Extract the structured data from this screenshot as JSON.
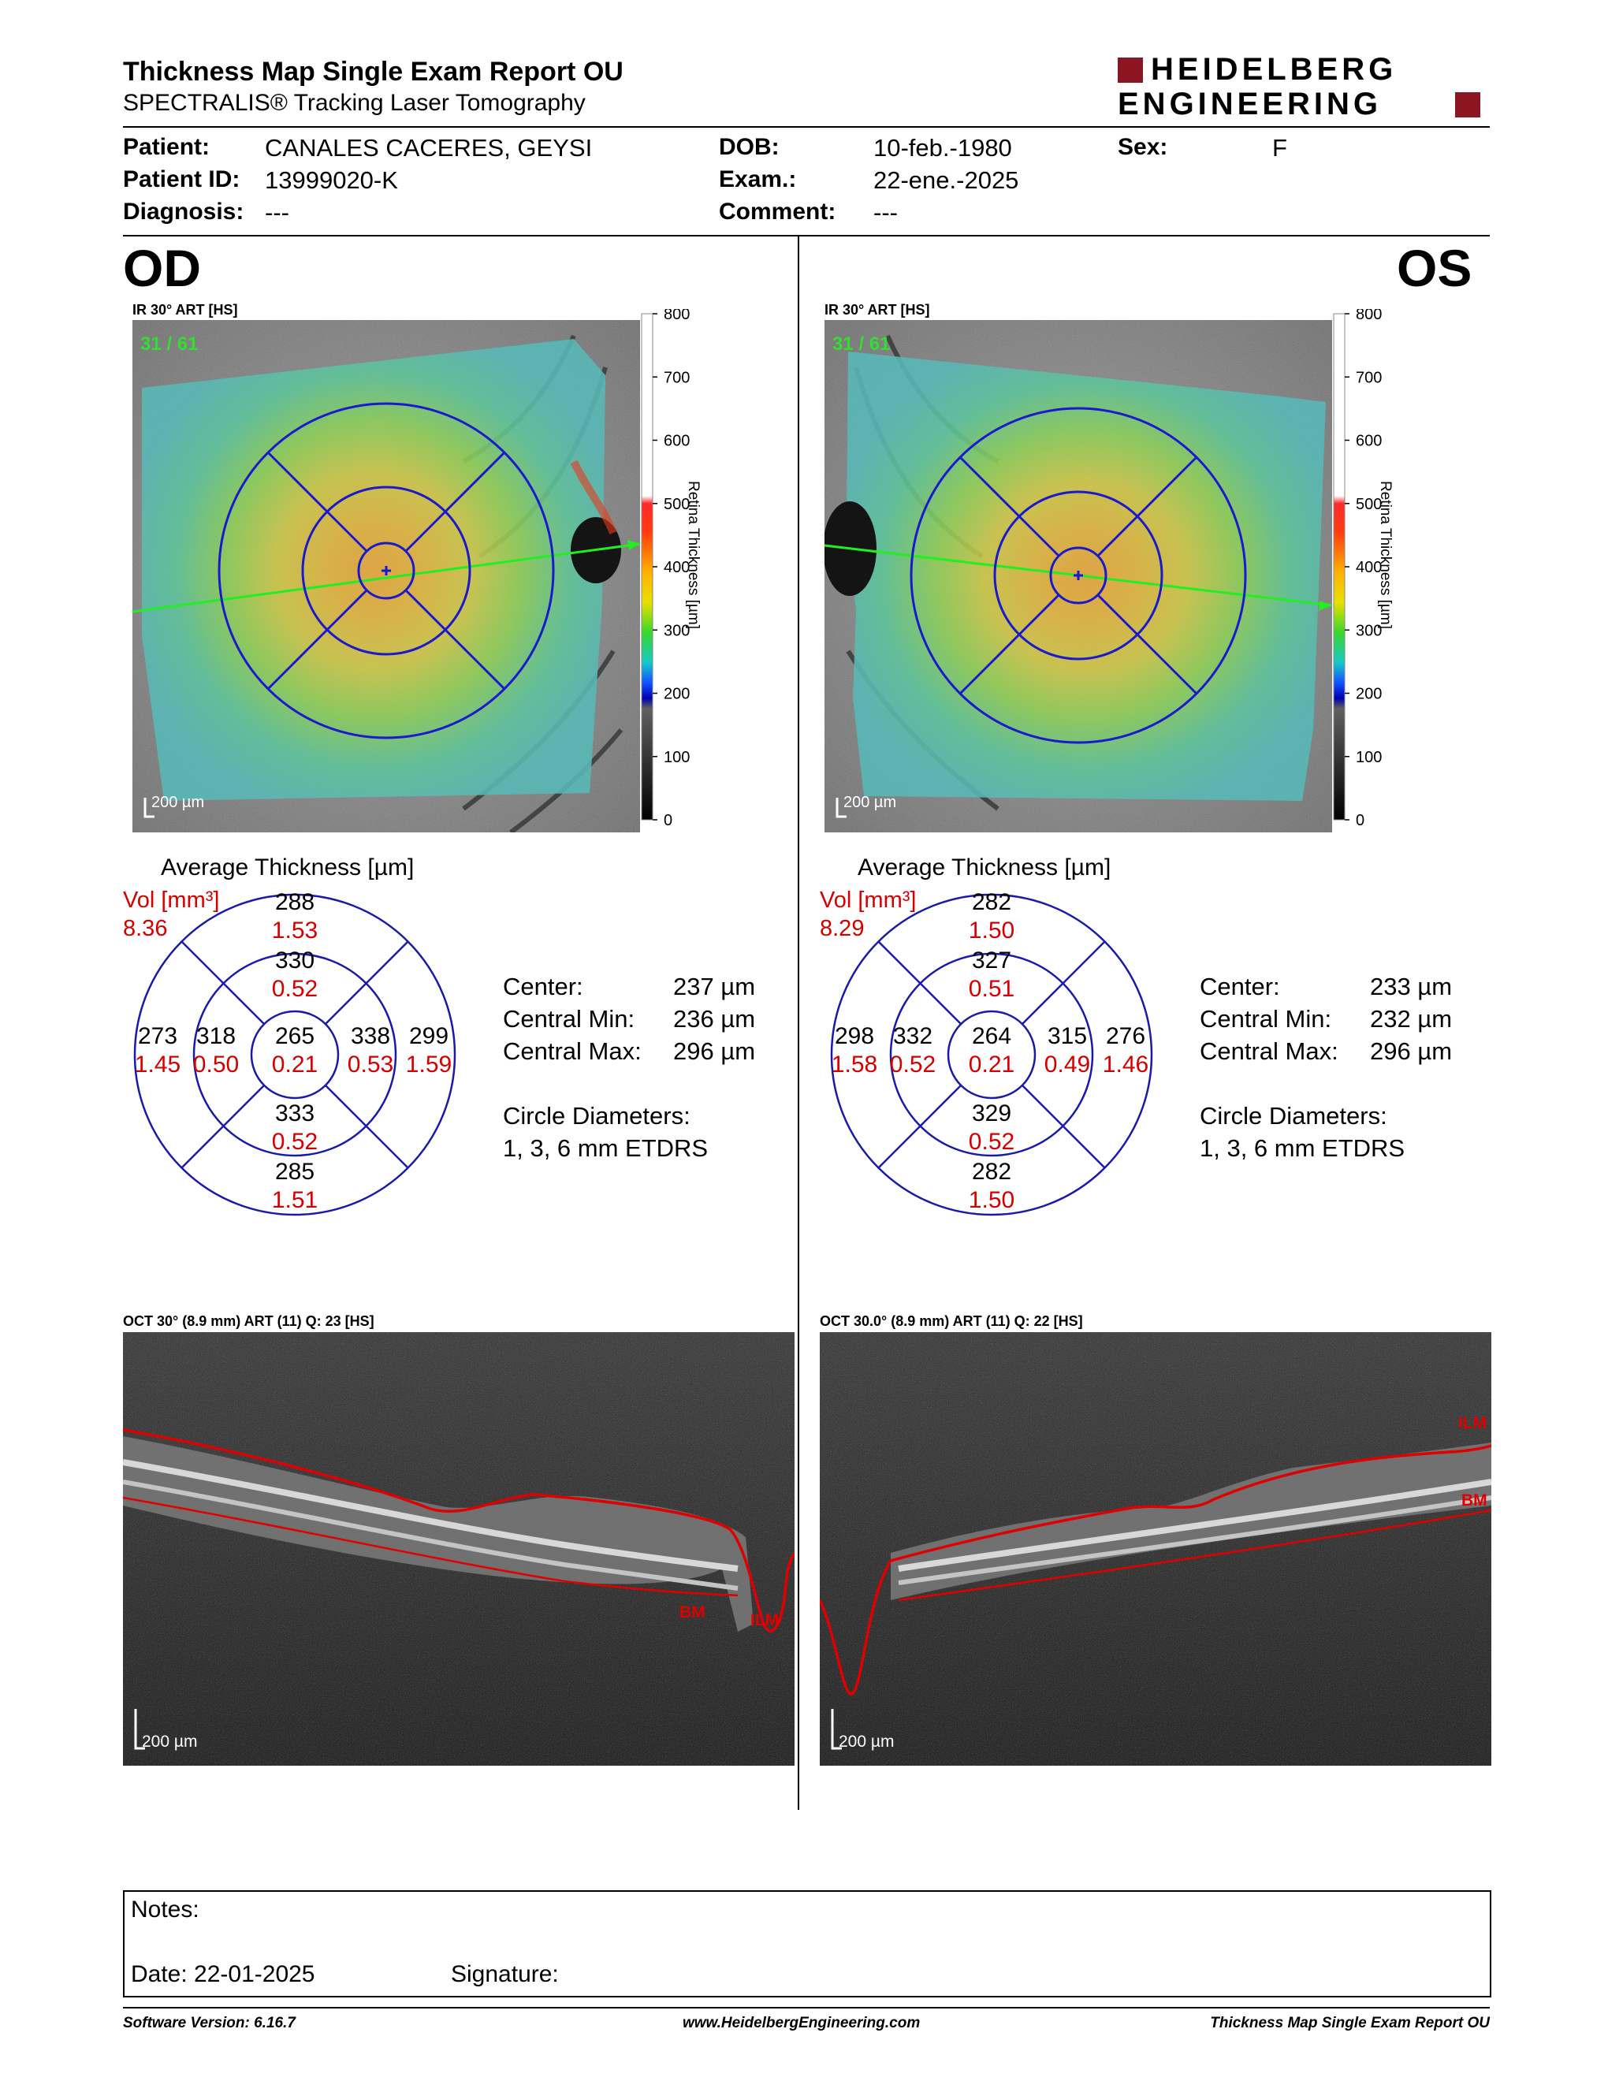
{
  "report": {
    "title": "Thickness Map Single Exam Report OU",
    "subtitle": "SPECTRALIS® Tracking Laser Tomography",
    "logo_line1": "HEIDELBERG",
    "logo_line2": "ENGINEERING"
  },
  "patient": {
    "patient_label": "Patient:",
    "patient_value": "CANALES CACERES, GEYSI",
    "id_label": "Patient ID:",
    "id_value": "13999020-K",
    "diag_label": "Diagnosis:",
    "diag_value": "---",
    "dob_label": "DOB:",
    "dob_value": "10-feb.-1980",
    "exam_label": "Exam.:",
    "exam_value": "22-ene.-2025",
    "comment_label": "Comment:",
    "comment_value": "---",
    "sex_label": "Sex:",
    "sex_value": "F"
  },
  "scale": {
    "ticks": [
      "800",
      "700",
      "600",
      "500",
      "400",
      "300",
      "200",
      "100",
      "0"
    ],
    "label": "Retina Thickness [µm]"
  },
  "od": {
    "eye": "OD",
    "ir_label": "IR 30° ART [HS]",
    "ir_counter": "31 / 61",
    "scalebar": "200 µm",
    "avg_title": "Average Thickness [µm]",
    "vol_label": "Vol [mm³]",
    "vol_value": "8.36",
    "sectors": {
      "center_t": "265",
      "center_v": "0.21",
      "inner_sup_t": "330",
      "inner_sup_v": "0.52",
      "inner_inf_t": "333",
      "inner_inf_v": "0.52",
      "inner_left_t": "318",
      "inner_left_v": "0.50",
      "inner_right_t": "338",
      "inner_right_v": "0.53",
      "outer_sup_t": "288",
      "outer_sup_v": "1.53",
      "outer_inf_t": "285",
      "outer_inf_v": "1.51",
      "outer_left_t": "273",
      "outer_left_v": "1.45",
      "outer_right_t": "299",
      "outer_right_v": "1.59"
    },
    "center_label": "Center:",
    "center_value": "237 µm",
    "cmin_label": "Central Min:",
    "cmin_value": "236 µm",
    "cmax_label": "Central Max:",
    "cmax_value": "296 µm",
    "diam_label": "Circle Diameters:",
    "diam_value": "1, 3, 6 mm ETDRS",
    "oct_label": "OCT 30° (8.9 mm) ART (11) Q: 23 [HS]",
    "oct_bm": "BM",
    "oct_ilm": "ILM",
    "oct_scalebar": "200 µm"
  },
  "os": {
    "eye": "OS",
    "ir_label": "IR 30° ART [HS]",
    "ir_counter": "31 / 61",
    "scalebar": "200 µm",
    "avg_title": "Average Thickness [µm]",
    "vol_label": "Vol [mm³]",
    "vol_value": "8.29",
    "sectors": {
      "center_t": "264",
      "center_v": "0.21",
      "inner_sup_t": "327",
      "inner_sup_v": "0.51",
      "inner_inf_t": "329",
      "inner_inf_v": "0.52",
      "inner_left_t": "332",
      "inner_left_v": "0.52",
      "inner_right_t": "315",
      "inner_right_v": "0.49",
      "outer_sup_t": "282",
      "outer_sup_v": "1.50",
      "outer_inf_t": "282",
      "outer_inf_v": "1.50",
      "outer_left_t": "298",
      "outer_left_v": "1.58",
      "outer_right_t": "276",
      "outer_right_v": "1.46"
    },
    "center_label": "Center:",
    "center_value": "233 µm",
    "cmin_label": "Central Min:",
    "cmin_value": "232 µm",
    "cmax_label": "Central Max:",
    "cmax_value": "296 µm",
    "diam_label": "Circle Diameters:",
    "diam_value": "1, 3, 6 mm ETDRS",
    "oct_label": "OCT 30.0° (8.9 mm) ART (11) Q: 22 [HS]",
    "oct_bm": "BM",
    "oct_ilm": "ILM",
    "oct_scalebar": "200 µm"
  },
  "notes": {
    "notes_label": "Notes:",
    "date_label": "Date: 22-01-2025",
    "signature_label": "Signature:"
  },
  "footer": {
    "software": "Software Version: 6.16.7",
    "url": "www.HeidelbergEngineering.com",
    "report_name": "Thickness Map Single Exam Report OU"
  }
}
